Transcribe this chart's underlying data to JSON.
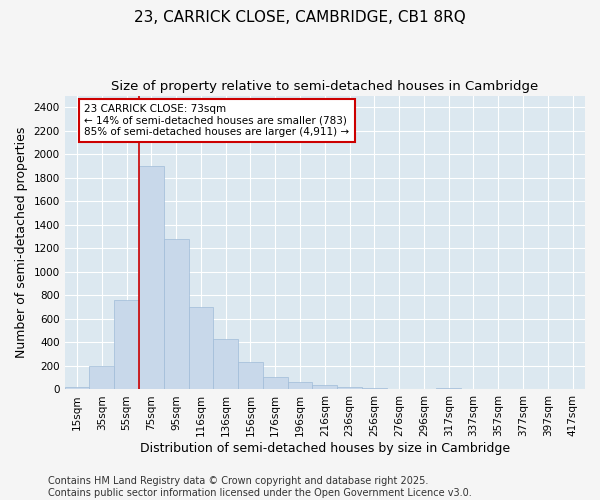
{
  "title1": "23, CARRICK CLOSE, CAMBRIDGE, CB1 8RQ",
  "title2": "Size of property relative to semi-detached houses in Cambridge",
  "xlabel": "Distribution of semi-detached houses by size in Cambridge",
  "ylabel": "Number of semi-detached properties",
  "categories": [
    "15sqm",
    "35sqm",
    "55sqm",
    "75sqm",
    "95sqm",
    "116sqm",
    "136sqm",
    "156sqm",
    "176sqm",
    "196sqm",
    "216sqm",
    "236sqm",
    "256sqm",
    "276sqm",
    "296sqm",
    "317sqm",
    "337sqm",
    "357sqm",
    "377sqm",
    "397sqm",
    "417sqm"
  ],
  "values": [
    25,
    200,
    760,
    1900,
    1280,
    700,
    430,
    230,
    110,
    65,
    35,
    25,
    15,
    5,
    5,
    10,
    0,
    0,
    0,
    0,
    0
  ],
  "bar_color": "#c8d8ea",
  "bar_edge_color": "#a0bcd8",
  "annotation_text": "23 CARRICK CLOSE: 73sqm\n← 14% of semi-detached houses are smaller (783)\n85% of semi-detached houses are larger (4,911) →",
  "ylim": [
    0,
    2500
  ],
  "yticks": [
    0,
    200,
    400,
    600,
    800,
    1000,
    1200,
    1400,
    1600,
    1800,
    2000,
    2200,
    2400
  ],
  "footer": "Contains HM Land Registry data © Crown copyright and database right 2025.\nContains public sector information licensed under the Open Government Licence v3.0.",
  "bg_color": "#f5f5f5",
  "plot_bg_color": "#dce8f0",
  "grid_color": "#ffffff",
  "title_fontsize": 11,
  "subtitle_fontsize": 9.5,
  "axis_label_fontsize": 9,
  "tick_fontsize": 7.5,
  "footer_fontsize": 7
}
